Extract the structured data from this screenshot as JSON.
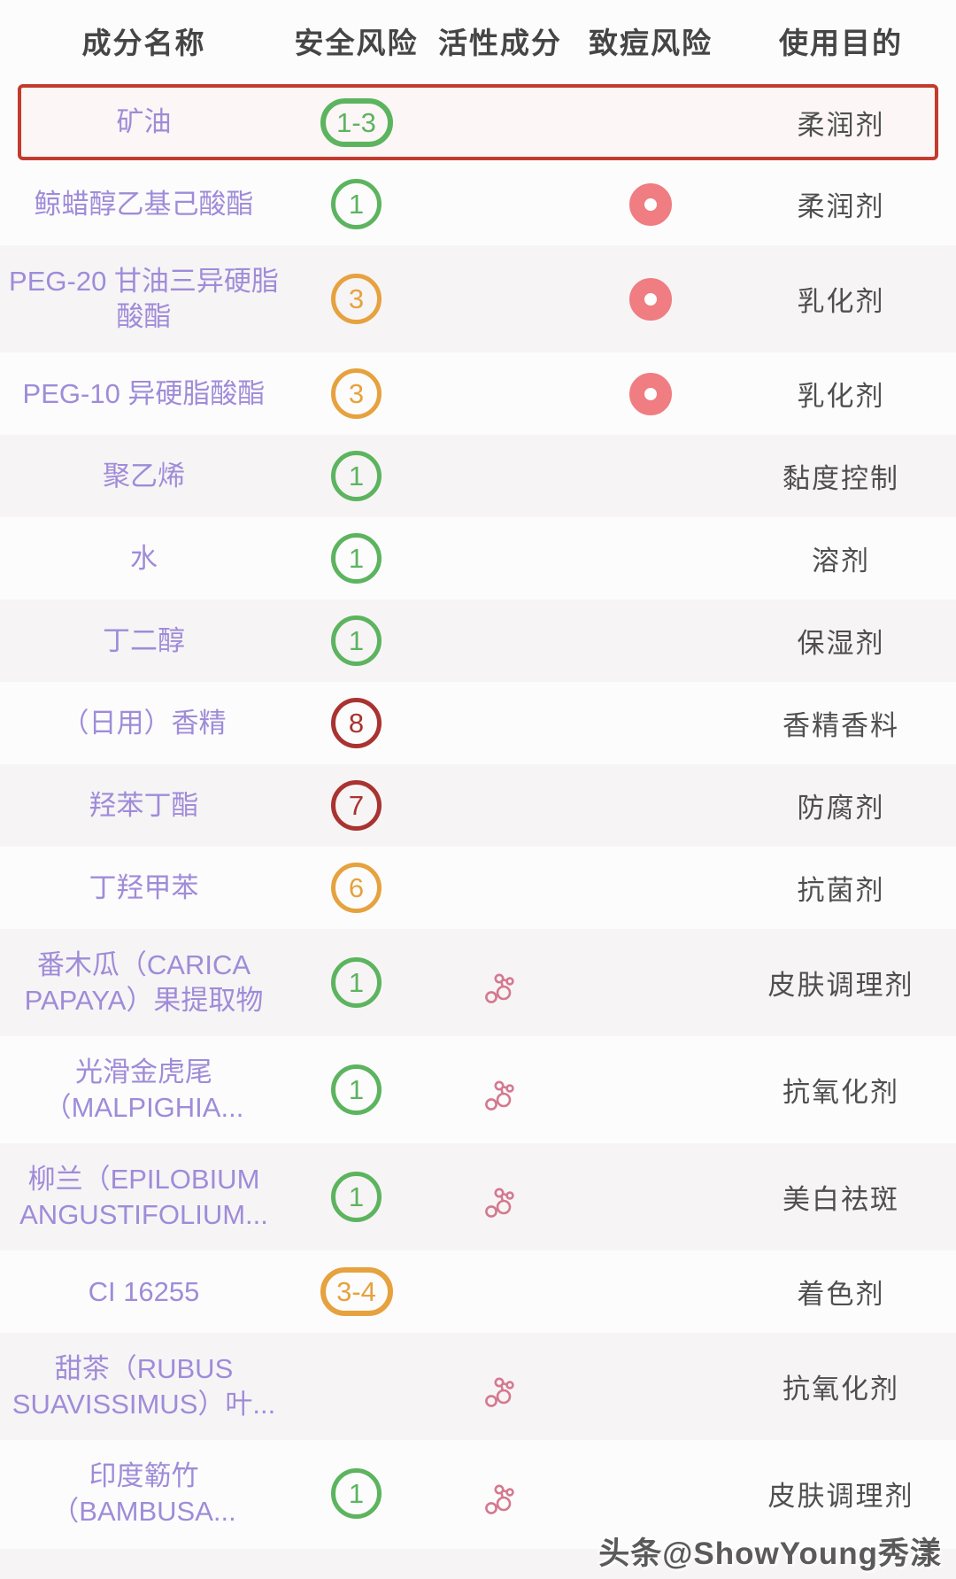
{
  "header": {
    "columns": [
      "成分名称",
      "安全风险",
      "活性成分",
      "致痘风险",
      "使用目的"
    ]
  },
  "colors": {
    "green": "#5cb45f",
    "orange": "#e6a23e",
    "red": "#a93330",
    "acne_donut": "#ef7d81",
    "active_icon": "#d4798e",
    "name_text": "#9f8cd8",
    "purpose_text": "#4f4f4f",
    "zebra_band": "#f7f4f6",
    "highlight_border": "#c23b2d",
    "highlight_bg": "#fcf6f6"
  },
  "icons": {
    "active_ingredient": "molecule-icon",
    "acne_risk": "donut-icon"
  },
  "rows": [
    {
      "name": "矿油",
      "risk": "1-3",
      "risk_color": "green",
      "risk_shape": "pill",
      "active": false,
      "acne": false,
      "purpose": "柔润剂",
      "highlight": true,
      "tall": false,
      "zebra": false
    },
    {
      "name": "鲸蜡醇乙基己酸酯",
      "risk": "1",
      "risk_color": "green",
      "risk_shape": "circle",
      "active": false,
      "acne": true,
      "purpose": "柔润剂",
      "highlight": false,
      "tall": false,
      "zebra": false
    },
    {
      "name": "PEG-20 甘油三异硬脂\n酸酯",
      "risk": "3",
      "risk_color": "orange",
      "risk_shape": "circle",
      "active": false,
      "acne": true,
      "purpose": "乳化剂",
      "highlight": false,
      "tall": true,
      "zebra": true
    },
    {
      "name": "PEG-10 异硬脂酸酯",
      "risk": "3",
      "risk_color": "orange",
      "risk_shape": "circle",
      "active": false,
      "acne": true,
      "purpose": "乳化剂",
      "highlight": false,
      "tall": false,
      "zebra": false
    },
    {
      "name": "聚乙烯",
      "risk": "1",
      "risk_color": "green",
      "risk_shape": "circle",
      "active": false,
      "acne": false,
      "purpose": "黏度控制",
      "highlight": false,
      "tall": false,
      "zebra": true
    },
    {
      "name": "水",
      "risk": "1",
      "risk_color": "green",
      "risk_shape": "circle",
      "active": false,
      "acne": false,
      "purpose": "溶剂",
      "highlight": false,
      "tall": false,
      "zebra": false
    },
    {
      "name": "丁二醇",
      "risk": "1",
      "risk_color": "green",
      "risk_shape": "circle",
      "active": false,
      "acne": false,
      "purpose": "保湿剂",
      "highlight": false,
      "tall": false,
      "zebra": true
    },
    {
      "name": "（日用）香精",
      "risk": "8",
      "risk_color": "red",
      "risk_shape": "circle",
      "active": false,
      "acne": false,
      "purpose": "香精香料",
      "highlight": false,
      "tall": false,
      "zebra": false
    },
    {
      "name": "羟苯丁酯",
      "risk": "7",
      "risk_color": "red",
      "risk_shape": "circle",
      "active": false,
      "acne": false,
      "purpose": "防腐剂",
      "highlight": false,
      "tall": false,
      "zebra": true
    },
    {
      "name": "丁羟甲苯",
      "risk": "6",
      "risk_color": "orange",
      "risk_shape": "circle",
      "active": false,
      "acne": false,
      "purpose": "抗菌剂",
      "highlight": false,
      "tall": false,
      "zebra": false
    },
    {
      "name": "番木瓜（CARICA\nPAPAYA）果提取物",
      "risk": "1",
      "risk_color": "green",
      "risk_shape": "circle",
      "active": true,
      "acne": false,
      "purpose": "皮肤调理剂",
      "highlight": false,
      "tall": true,
      "zebra": true
    },
    {
      "name": "光滑金虎尾\n（MALPIGHIA...",
      "risk": "1",
      "risk_color": "green",
      "risk_shape": "circle",
      "active": true,
      "acne": false,
      "purpose": "抗氧化剂",
      "highlight": false,
      "tall": true,
      "zebra": false
    },
    {
      "name": "柳兰（EPILOBIUM\nANGUSTIFOLIUM...",
      "risk": "1",
      "risk_color": "green",
      "risk_shape": "circle",
      "active": true,
      "acne": false,
      "purpose": "美白祛斑",
      "highlight": false,
      "tall": true,
      "zebra": true
    },
    {
      "name": "CI 16255",
      "risk": "3-4",
      "risk_color": "orange",
      "risk_shape": "pill",
      "active": false,
      "acne": false,
      "purpose": "着色剂",
      "highlight": false,
      "tall": false,
      "zebra": false
    },
    {
      "name": "甜茶（RUBUS\nSUAVISSIMUS）叶...",
      "risk": "",
      "risk_color": "",
      "risk_shape": "",
      "active": true,
      "acne": false,
      "purpose": "抗氧化剂",
      "highlight": false,
      "tall": true,
      "zebra": true
    },
    {
      "name": "印度簕竹\n（BAMBUSA...",
      "risk": "1",
      "risk_color": "green",
      "risk_shape": "circle",
      "active": true,
      "acne": false,
      "purpose": "皮肤调理剂",
      "highlight": false,
      "tall": true,
      "zebra": false
    }
  ],
  "watermark": "头条@ShowYoung秀漾"
}
